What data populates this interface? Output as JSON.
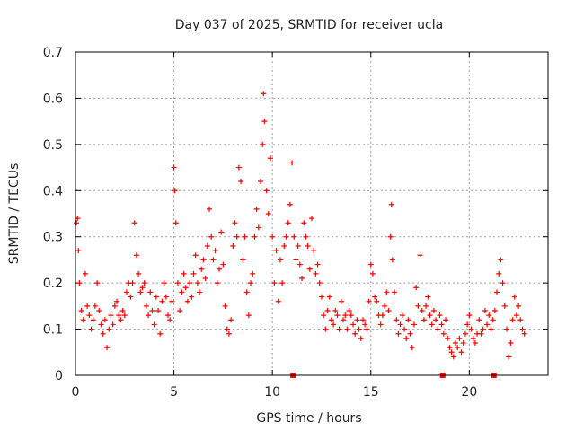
{
  "chart_data": {
    "type": "scatter",
    "title": "Day 037 of 2025, SRMTID for receiver ucla",
    "xlabel": "GPS time / hours",
    "ylabel": "SRMTID / TECUs",
    "xlim": [
      0,
      24
    ],
    "ylim": [
      0,
      0.7
    ],
    "xticks": [
      0,
      5,
      10,
      15,
      20
    ],
    "yticks": [
      0,
      0.1,
      0.2,
      0.3,
      0.4,
      0.5,
      0.6,
      0.7
    ],
    "xtick_labels": [
      "0",
      "5",
      "10",
      "15",
      "20"
    ],
    "ytick_labels": [
      "0",
      "0.1",
      "0.2",
      "0.3",
      "0.4",
      "0.5",
      "0.6",
      "0.7"
    ],
    "grid": true,
    "marker": "+",
    "color": "#ff0000",
    "series": [
      {
        "name": "SRMTID",
        "points": [
          [
            0.05,
            0.33
          ],
          [
            0.1,
            0.34
          ],
          [
            0.15,
            0.27
          ],
          [
            0.2,
            0.2
          ],
          [
            0.3,
            0.14
          ],
          [
            0.4,
            0.12
          ],
          [
            0.5,
            0.22
          ],
          [
            0.6,
            0.15
          ],
          [
            0.7,
            0.13
          ],
          [
            0.8,
            0.1
          ],
          [
            0.9,
            0.12
          ],
          [
            1.0,
            0.15
          ],
          [
            1.1,
            0.2
          ],
          [
            1.2,
            0.14
          ],
          [
            1.3,
            0.11
          ],
          [
            1.4,
            0.09
          ],
          [
            1.5,
            0.12
          ],
          [
            1.6,
            0.06
          ],
          [
            1.7,
            0.1
          ],
          [
            1.8,
            0.13
          ],
          [
            1.9,
            0.11
          ],
          [
            2.0,
            0.15
          ],
          [
            2.1,
            0.16
          ],
          [
            2.2,
            0.13
          ],
          [
            2.3,
            0.12
          ],
          [
            2.4,
            0.14
          ],
          [
            2.5,
            0.13
          ],
          [
            2.6,
            0.18
          ],
          [
            2.7,
            0.2
          ],
          [
            2.8,
            0.17
          ],
          [
            2.9,
            0.2
          ],
          [
            3.0,
            0.33
          ],
          [
            3.1,
            0.26
          ],
          [
            3.2,
            0.22
          ],
          [
            3.3,
            0.18
          ],
          [
            3.4,
            0.19
          ],
          [
            3.5,
            0.2
          ],
          [
            3.6,
            0.15
          ],
          [
            3.7,
            0.13
          ],
          [
            3.8,
            0.18
          ],
          [
            3.9,
            0.14
          ],
          [
            4.0,
            0.11
          ],
          [
            4.1,
            0.17
          ],
          [
            4.2,
            0.14
          ],
          [
            4.3,
            0.09
          ],
          [
            4.4,
            0.16
          ],
          [
            4.5,
            0.2
          ],
          [
            4.6,
            0.17
          ],
          [
            4.7,
            0.13
          ],
          [
            4.8,
            0.12
          ],
          [
            4.9,
            0.16
          ],
          [
            5.0,
            0.45
          ],
          [
            5.05,
            0.4
          ],
          [
            5.1,
            0.33
          ],
          [
            5.2,
            0.2
          ],
          [
            5.3,
            0.14
          ],
          [
            5.4,
            0.18
          ],
          [
            5.5,
            0.22
          ],
          [
            5.6,
            0.19
          ],
          [
            5.7,
            0.16
          ],
          [
            5.8,
            0.2
          ],
          [
            5.9,
            0.17
          ],
          [
            6.0,
            0.22
          ],
          [
            6.1,
            0.26
          ],
          [
            6.2,
            0.2
          ],
          [
            6.3,
            0.18
          ],
          [
            6.4,
            0.23
          ],
          [
            6.5,
            0.25
          ],
          [
            6.6,
            0.21
          ],
          [
            6.7,
            0.28
          ],
          [
            6.8,
            0.36
          ],
          [
            6.9,
            0.3
          ],
          [
            7.0,
            0.25
          ],
          [
            7.1,
            0.27
          ],
          [
            7.2,
            0.2
          ],
          [
            7.3,
            0.23
          ],
          [
            7.4,
            0.31
          ],
          [
            7.5,
            0.24
          ],
          [
            7.6,
            0.15
          ],
          [
            7.7,
            0.1
          ],
          [
            7.8,
            0.09
          ],
          [
            7.9,
            0.12
          ],
          [
            8.0,
            0.28
          ],
          [
            8.1,
            0.33
          ],
          [
            8.2,
            0.3
          ],
          [
            8.3,
            0.45
          ],
          [
            8.4,
            0.42
          ],
          [
            8.5,
            0.25
          ],
          [
            8.6,
            0.3
          ],
          [
            8.7,
            0.18
          ],
          [
            8.8,
            0.13
          ],
          [
            8.9,
            0.2
          ],
          [
            9.0,
            0.22
          ],
          [
            9.1,
            0.3
          ],
          [
            9.2,
            0.36
          ],
          [
            9.3,
            0.32
          ],
          [
            9.4,
            0.42
          ],
          [
            9.5,
            0.5
          ],
          [
            9.55,
            0.61
          ],
          [
            9.6,
            0.55
          ],
          [
            9.7,
            0.4
          ],
          [
            9.8,
            0.35
          ],
          [
            9.9,
            0.47
          ],
          [
            10.0,
            0.3
          ],
          [
            10.1,
            0.2
          ],
          [
            10.2,
            0.27
          ],
          [
            10.3,
            0.16
          ],
          [
            10.4,
            0.25
          ],
          [
            10.5,
            0.2
          ],
          [
            10.6,
            0.28
          ],
          [
            10.7,
            0.3
          ],
          [
            10.8,
            0.33
          ],
          [
            10.9,
            0.37
          ],
          [
            11.0,
            0.46
          ],
          [
            11.1,
            0.3
          ],
          [
            11.2,
            0.25
          ],
          [
            11.3,
            0.28
          ],
          [
            11.4,
            0.24
          ],
          [
            11.5,
            0.21
          ],
          [
            11.6,
            0.33
          ],
          [
            11.7,
            0.3
          ],
          [
            11.8,
            0.28
          ],
          [
            11.9,
            0.23
          ],
          [
            12.0,
            0.34
          ],
          [
            12.1,
            0.27
          ],
          [
            12.2,
            0.22
          ],
          [
            12.3,
            0.24
          ],
          [
            12.4,
            0.2
          ],
          [
            12.5,
            0.17
          ],
          [
            12.6,
            0.13
          ],
          [
            12.7,
            0.1
          ],
          [
            12.8,
            0.14
          ],
          [
            12.9,
            0.17
          ],
          [
            13.0,
            0.12
          ],
          [
            13.1,
            0.11
          ],
          [
            13.2,
            0.14
          ],
          [
            13.3,
            0.13
          ],
          [
            13.4,
            0.1
          ],
          [
            13.5,
            0.16
          ],
          [
            13.6,
            0.12
          ],
          [
            13.7,
            0.13
          ],
          [
            13.8,
            0.1
          ],
          [
            13.9,
            0.14
          ],
          [
            14.0,
            0.13
          ],
          [
            14.1,
            0.11
          ],
          [
            14.2,
            0.09
          ],
          [
            14.3,
            0.12
          ],
          [
            14.4,
            0.1
          ],
          [
            14.5,
            0.08
          ],
          [
            14.6,
            0.12
          ],
          [
            14.7,
            0.11
          ],
          [
            14.8,
            0.1
          ],
          [
            14.9,
            0.16
          ],
          [
            15.0,
            0.24
          ],
          [
            15.1,
            0.22
          ],
          [
            15.2,
            0.17
          ],
          [
            15.3,
            0.16
          ],
          [
            15.4,
            0.13
          ],
          [
            15.5,
            0.11
          ],
          [
            15.6,
            0.13
          ],
          [
            15.7,
            0.15
          ],
          [
            15.8,
            0.18
          ],
          [
            15.9,
            0.14
          ],
          [
            16.0,
            0.3
          ],
          [
            16.05,
            0.37
          ],
          [
            16.1,
            0.25
          ],
          [
            16.2,
            0.18
          ],
          [
            16.3,
            0.12
          ],
          [
            16.4,
            0.09
          ],
          [
            16.5,
            0.11
          ],
          [
            16.6,
            0.13
          ],
          [
            16.7,
            0.1
          ],
          [
            16.8,
            0.08
          ],
          [
            16.9,
            0.12
          ],
          [
            17.0,
            0.09
          ],
          [
            17.1,
            0.06
          ],
          [
            17.2,
            0.11
          ],
          [
            17.3,
            0.19
          ],
          [
            17.4,
            0.15
          ],
          [
            17.5,
            0.26
          ],
          [
            17.6,
            0.14
          ],
          [
            17.7,
            0.12
          ],
          [
            17.8,
            0.15
          ],
          [
            17.9,
            0.17
          ],
          [
            18.0,
            0.13
          ],
          [
            18.1,
            0.11
          ],
          [
            18.2,
            0.14
          ],
          [
            18.3,
            0.12
          ],
          [
            18.4,
            0.1
          ],
          [
            18.5,
            0.13
          ],
          [
            18.6,
            0.11
          ],
          [
            18.7,
            0.09
          ],
          [
            18.8,
            0.12
          ],
          [
            18.9,
            0.08
          ],
          [
            19.0,
            0.06
          ],
          [
            19.1,
            0.05
          ],
          [
            19.2,
            0.04
          ],
          [
            19.3,
            0.07
          ],
          [
            19.4,
            0.06
          ],
          [
            19.5,
            0.08
          ],
          [
            19.6,
            0.05
          ],
          [
            19.7,
            0.07
          ],
          [
            19.8,
            0.09
          ],
          [
            19.9,
            0.11
          ],
          [
            20.0,
            0.13
          ],
          [
            20.1,
            0.1
          ],
          [
            20.2,
            0.08
          ],
          [
            20.3,
            0.07
          ],
          [
            20.4,
            0.09
          ],
          [
            20.5,
            0.12
          ],
          [
            20.6,
            0.09
          ],
          [
            20.7,
            0.1
          ],
          [
            20.8,
            0.14
          ],
          [
            20.9,
            0.11
          ],
          [
            21.0,
            0.13
          ],
          [
            21.1,
            0.1
          ],
          [
            21.2,
            0.12
          ],
          [
            21.3,
            0.14
          ],
          [
            21.4,
            0.18
          ],
          [
            21.5,
            0.22
          ],
          [
            21.6,
            0.25
          ],
          [
            21.7,
            0.2
          ],
          [
            21.8,
            0.15
          ],
          [
            21.9,
            0.1
          ],
          [
            22.0,
            0.04
          ],
          [
            22.1,
            0.07
          ],
          [
            22.2,
            0.12
          ],
          [
            22.3,
            0.17
          ],
          [
            22.4,
            0.13
          ],
          [
            22.5,
            0.15
          ],
          [
            22.6,
            0.12
          ],
          [
            22.7,
            0.1
          ],
          [
            22.8,
            0.09
          ],
          [
            11.05,
            0.0
          ],
          [
            18.65,
            0.0
          ],
          [
            21.25,
            0.0
          ]
        ]
      }
    ]
  }
}
